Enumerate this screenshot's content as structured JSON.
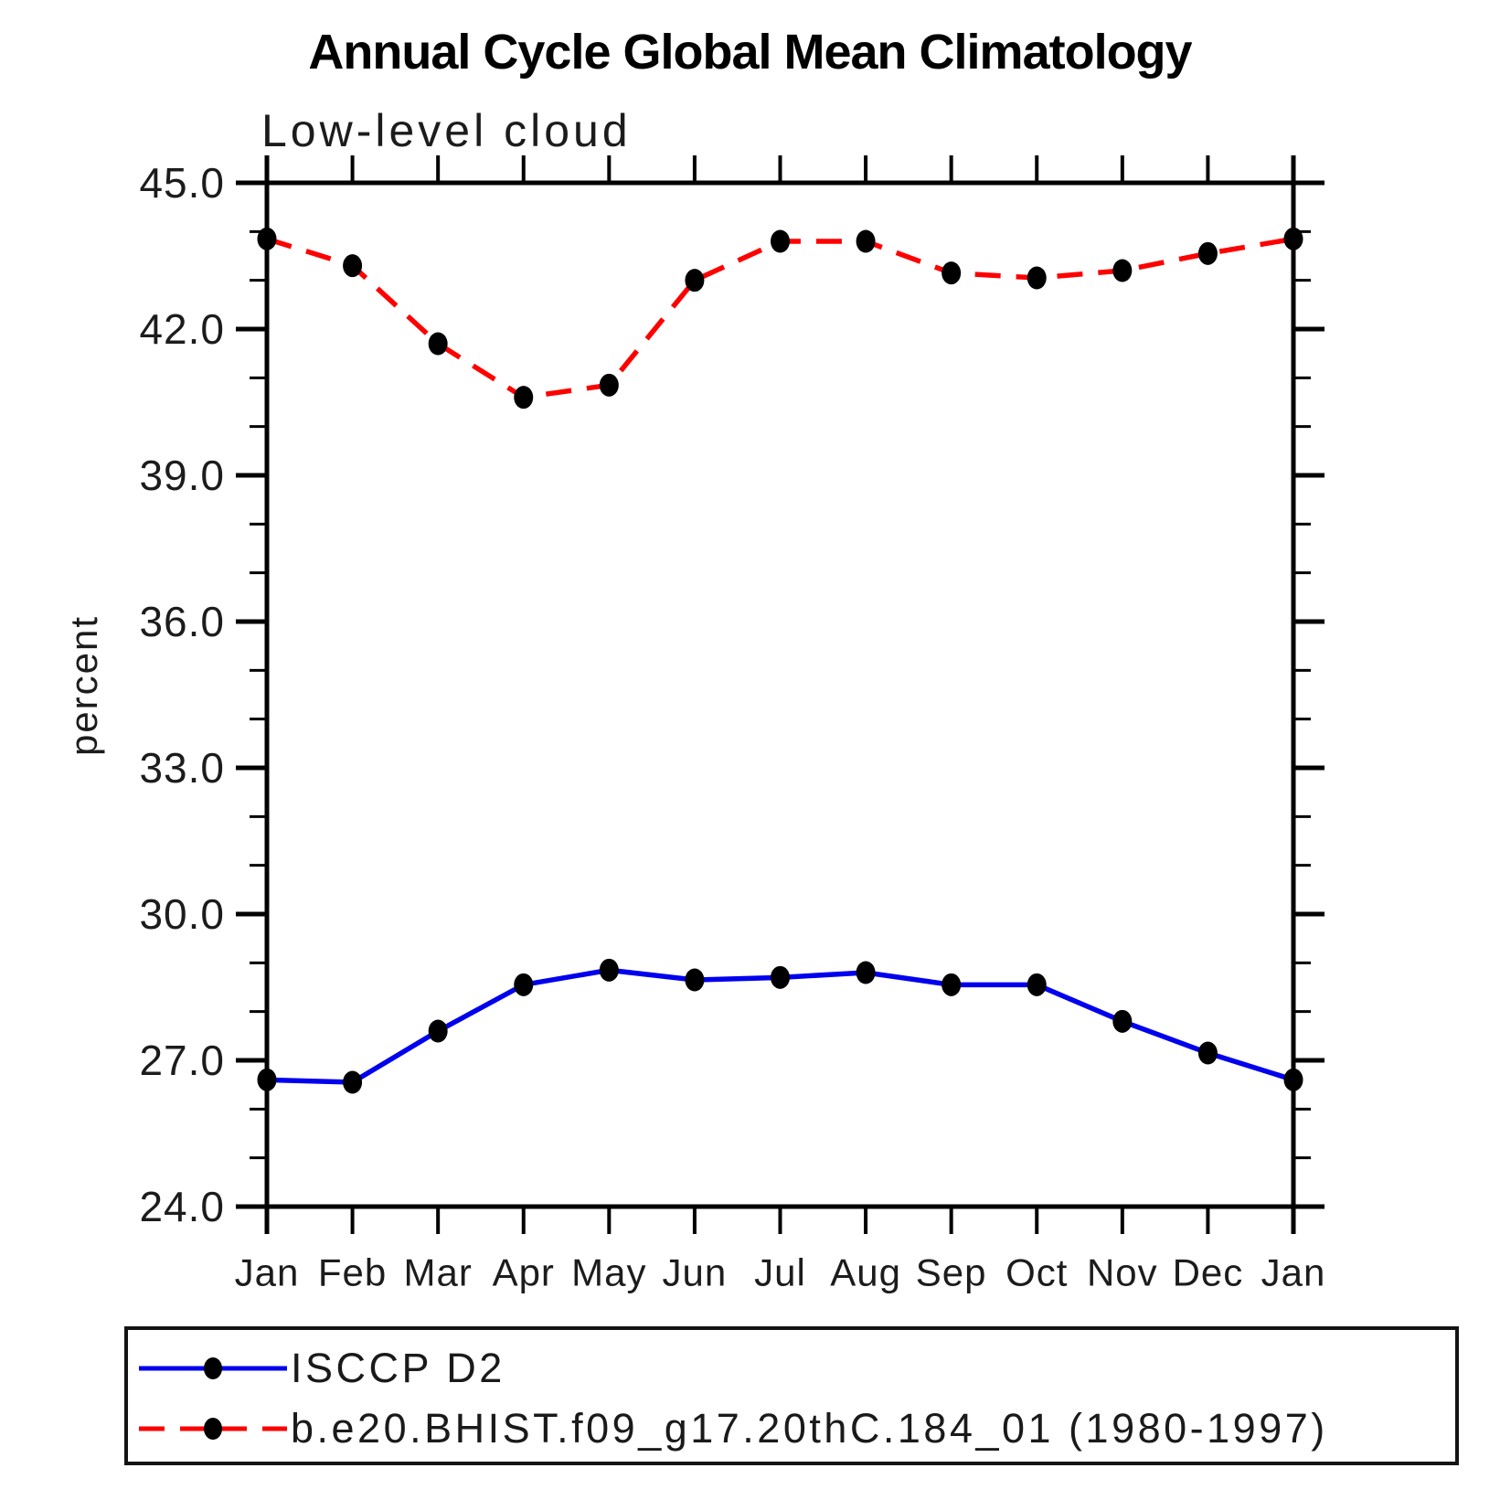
{
  "title": "Annual Cycle Global Mean Climatology",
  "subtitle": "Low-level cloud",
  "y_axis": {
    "label": "percent",
    "tick_labels": [
      "45.0",
      "42.0",
      "39.0",
      "36.0",
      "33.0",
      "30.0",
      "27.0",
      "24.0"
    ],
    "min": 24.0,
    "max": 45.0,
    "major_step": 3.0,
    "minor_step": 1.0
  },
  "x_axis": {
    "tick_labels": [
      "Jan",
      "Feb",
      "Mar",
      "Apr",
      "May",
      "Jun",
      "Jul",
      "Aug",
      "Sep",
      "Oct",
      "Nov",
      "Dec",
      "Jan"
    ]
  },
  "legend": {
    "entries": [
      {
        "label": "ISCCP D2",
        "color": "#0000EE",
        "line_style": "solid",
        "marker": "filled-circle",
        "marker_color": "#000000"
      },
      {
        "label": "b.e20.BHIST.f09_g17.20thC.184_01 (1980-1997)",
        "color": "#FF0000",
        "line_style": "dashed",
        "marker": "filled-circle",
        "marker_color": "#000000"
      }
    ]
  },
  "chart_data": {
    "type": "line",
    "title": "Annual Cycle Global Mean Climatology",
    "subtitle": "Low-level cloud",
    "ylabel": "percent",
    "ylim": [
      24.0,
      45.0
    ],
    "y_major_step": 3.0,
    "y_minor_step": 1.0,
    "grid": false,
    "legend_position": "bottom",
    "x": [
      "Jan",
      "Feb",
      "Mar",
      "Apr",
      "May",
      "Jun",
      "Jul",
      "Aug",
      "Sep",
      "Oct",
      "Nov",
      "Dec",
      "Jan"
    ],
    "series": [
      {
        "name": "ISCCP D2",
        "color": "#0000EE",
        "line_style": "solid",
        "marker": "filled-circle",
        "marker_color": "#000000",
        "values": [
          26.6,
          26.55,
          27.6,
          28.55,
          28.85,
          28.65,
          28.7,
          28.8,
          28.55,
          28.55,
          27.8,
          27.15,
          26.6
        ]
      },
      {
        "name": "b.e20.BHIST.f09_g17.20thC.184_01 (1980-1997)",
        "color": "#FF0000",
        "line_style": "dashed",
        "marker": "filled-circle",
        "marker_color": "#000000",
        "values": [
          43.85,
          43.3,
          41.7,
          40.6,
          40.85,
          43.0,
          43.8,
          43.8,
          43.15,
          43.05,
          43.2,
          43.55,
          43.85
        ]
      }
    ]
  }
}
